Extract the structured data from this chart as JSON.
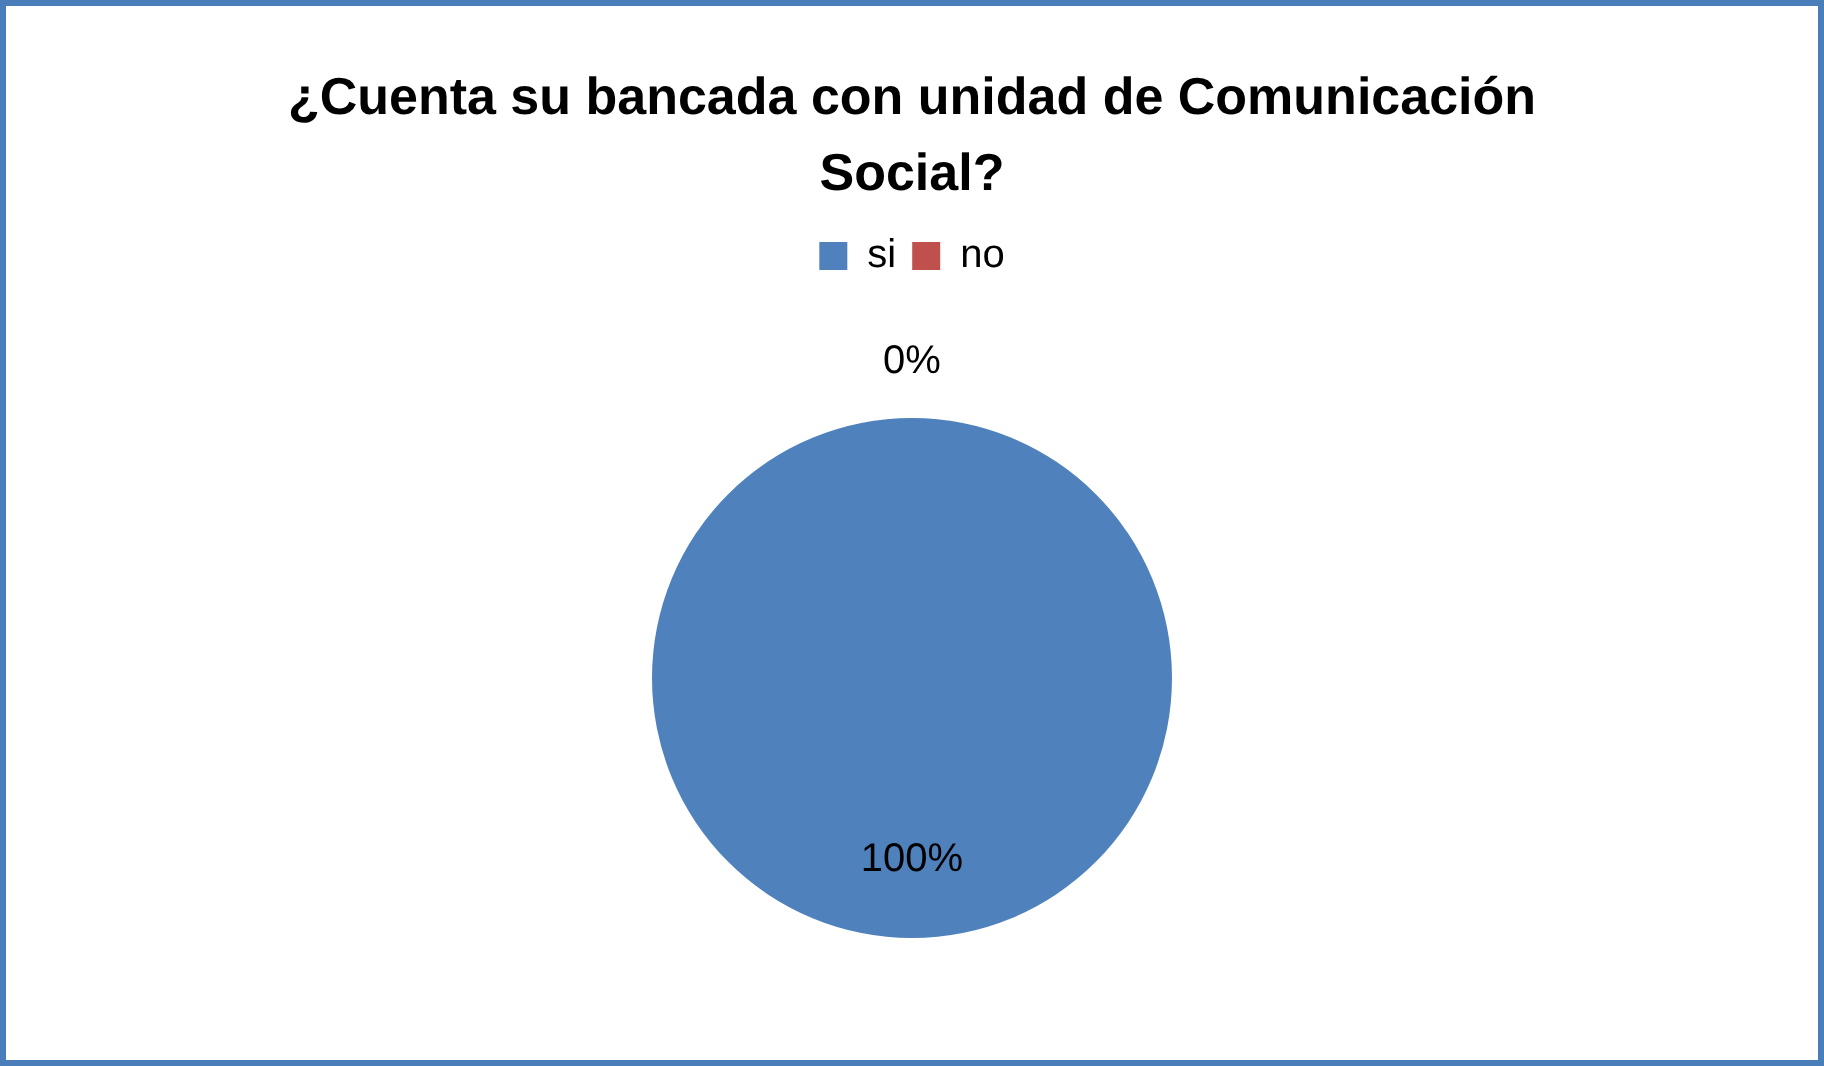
{
  "chart_data": {
    "type": "pie",
    "title": "¿Cuenta su bancada con unidad de Comunicación Social?",
    "categories": [
      "si",
      "no"
    ],
    "values": [
      100,
      0
    ],
    "colors": [
      "#4f81bd",
      "#c0504d"
    ],
    "value_labels": [
      "100%",
      "0%"
    ],
    "legend": "top"
  }
}
